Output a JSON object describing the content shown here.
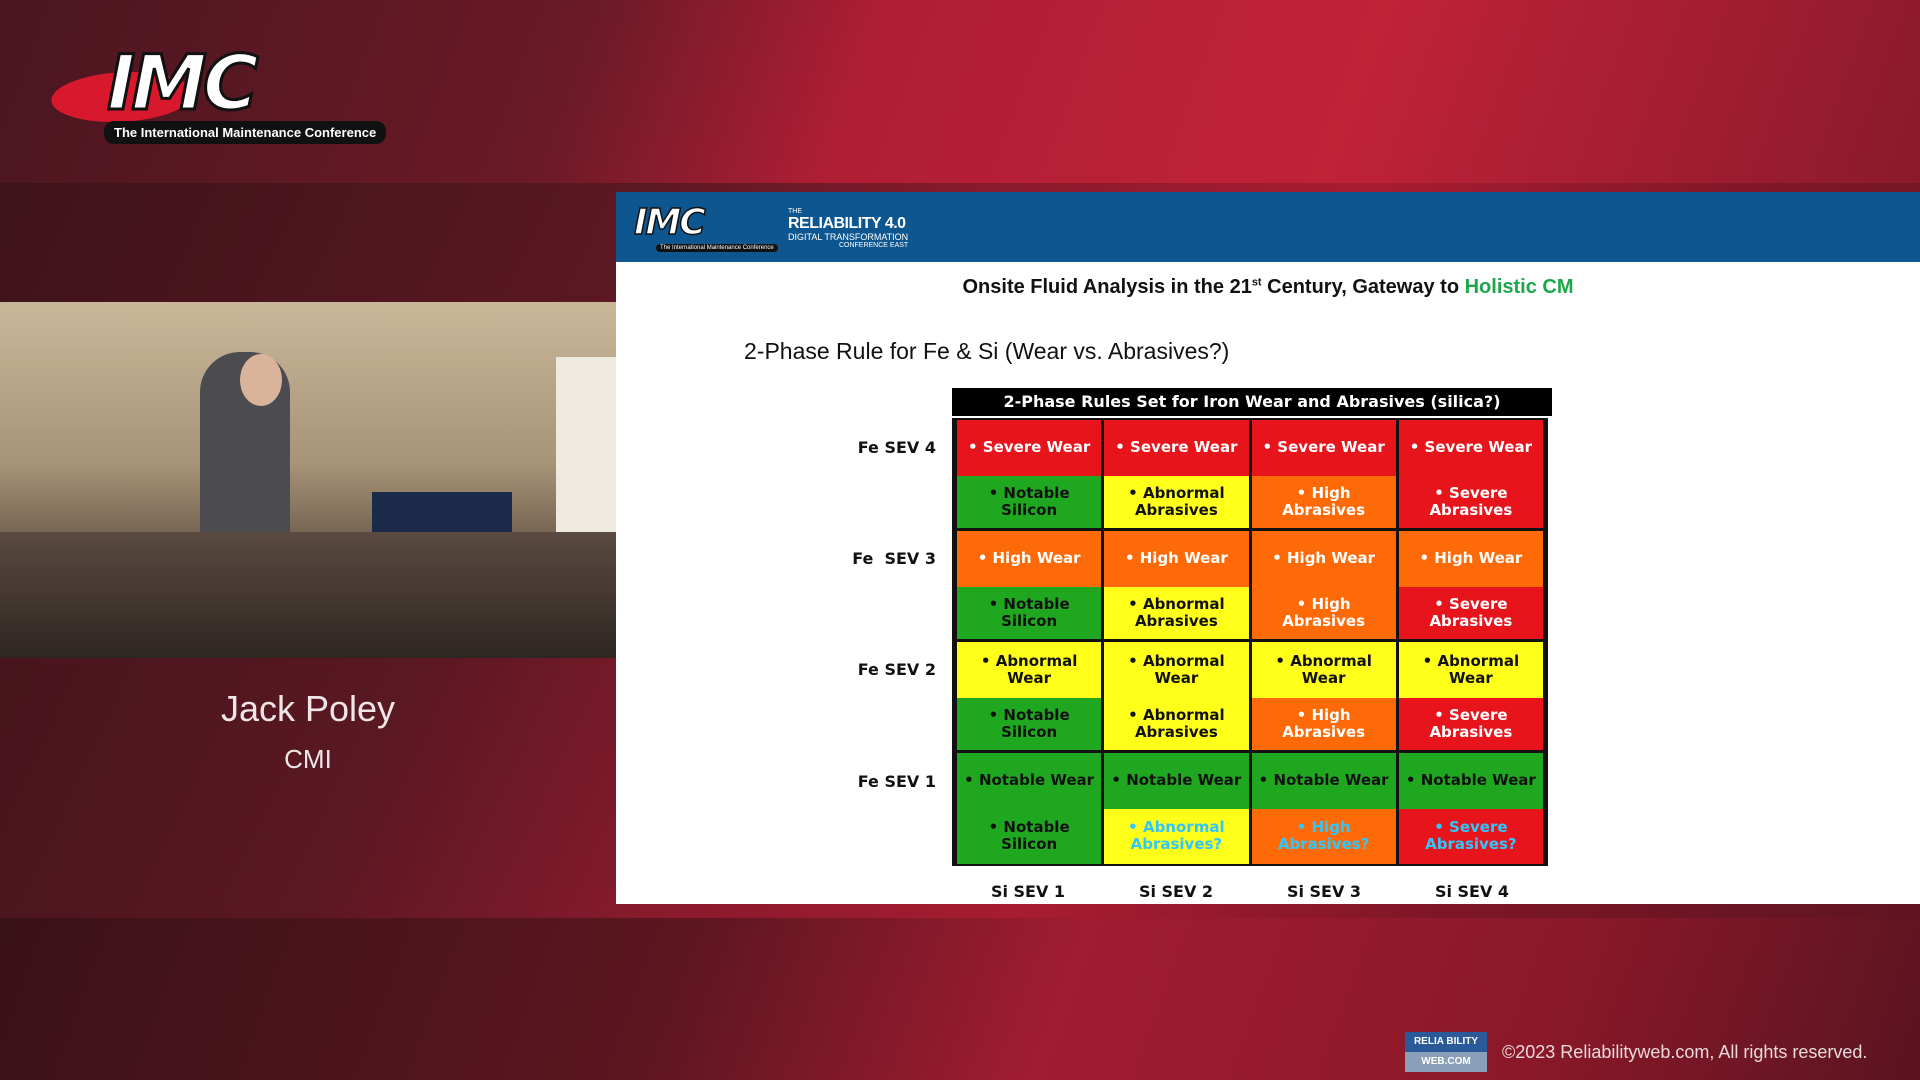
{
  "brand": {
    "logo_text": "IMC",
    "tagline": "The International Maintenance Conference"
  },
  "speaker": {
    "name": "Jack Poley",
    "title": "CMI"
  },
  "slide": {
    "header": {
      "logo_text": "IMC",
      "logo_tagline": "The International Maintenance Conference",
      "rel_line1": "THE",
      "rel_line2": "RELIABILITY 4.0",
      "rel_line3": "DIGITAL TRANSFORMATION",
      "rel_line4": "CONFERENCE EAST"
    },
    "title_pre": "Onsite Fluid Analysis in the 21",
    "title_sup": "st",
    "title_mid": " Century, Gateway to ",
    "title_highlight": "Holistic CM",
    "subtitle": "2-Phase Rule for Fe & Si (Wear vs. Abrasives?)",
    "table": {
      "title": "2-Phase Rules Set for Iron Wear and Abrasives (silica?)",
      "row_labels": [
        "Fe SEV 4",
        "Fe  SEV 3",
        "Fe SEV 2",
        "Fe SEV 1"
      ],
      "col_labels": [
        "Si SEV 1",
        "Si SEV 2",
        "Si SEV 3",
        "Si SEV 4"
      ],
      "colors": {
        "red": "#e8141c",
        "green": "#1fa81f",
        "yellow": "#ffff1a",
        "orange": "#ff6a08",
        "cyan_text": "#2ec8ff"
      },
      "cells": [
        [
          {
            "t": "• Severe Wear",
            "c": "red"
          },
          {
            "t": "• Severe Wear",
            "c": "red"
          },
          {
            "t": "• Severe Wear",
            "c": "red"
          },
          {
            "t": "• Severe Wear",
            "c": "red"
          }
        ],
        [
          {
            "t": "• Notable Silicon",
            "c": "grn"
          },
          {
            "t": "• Abnormal Abrasives",
            "c": "yel"
          },
          {
            "t": "• High Abrasives",
            "c": "org"
          },
          {
            "t": "• Severe Abrasives",
            "c": "red"
          }
        ],
        [
          {
            "t": "• High Wear",
            "c": "org"
          },
          {
            "t": "• High Wear",
            "c": "org"
          },
          {
            "t": "• High Wear",
            "c": "org"
          },
          {
            "t": "• High Wear",
            "c": "org"
          }
        ],
        [
          {
            "t": "• Notable Silicon",
            "c": "grn"
          },
          {
            "t": "• Abnormal Abrasives",
            "c": "yel"
          },
          {
            "t": "• High Abrasives",
            "c": "org"
          },
          {
            "t": "• Severe Abrasives",
            "c": "red"
          }
        ],
        [
          {
            "t": "• Abnormal Wear",
            "c": "yel"
          },
          {
            "t": "• Abnormal Wear",
            "c": "yel"
          },
          {
            "t": "• Abnormal Wear",
            "c": "yel"
          },
          {
            "t": "• Abnormal Wear",
            "c": "yel"
          }
        ],
        [
          {
            "t": "• Notable Silicon",
            "c": "grn"
          },
          {
            "t": "• Abnormal Abrasives",
            "c": "yel"
          },
          {
            "t": "• High Abrasives",
            "c": "org"
          },
          {
            "t": "• Severe Abrasives",
            "c": "red"
          }
        ],
        [
          {
            "t": "• Notable Wear",
            "c": "grn"
          },
          {
            "t": "• Notable Wear",
            "c": "grn"
          },
          {
            "t": "• Notable Wear",
            "c": "grn"
          },
          {
            "t": "• Notable Wear",
            "c": "grn"
          }
        ],
        [
          {
            "t": "• Notable Silicon",
            "c": "grn"
          },
          {
            "t": "• Abnormal Abrasives?",
            "c": "yel",
            "cyan": true
          },
          {
            "t": "• High Abrasives?",
            "c": "org",
            "cyan": true
          },
          {
            "t": "• Severe Abrasives?",
            "c": "red",
            "cyan": true
          }
        ]
      ]
    }
  },
  "footer": {
    "logo_line1": "RELIA BILITY",
    "logo_line2": "WEB.COM",
    "copyright": "©2023 Reliabilityweb.com, All rights reserved."
  }
}
